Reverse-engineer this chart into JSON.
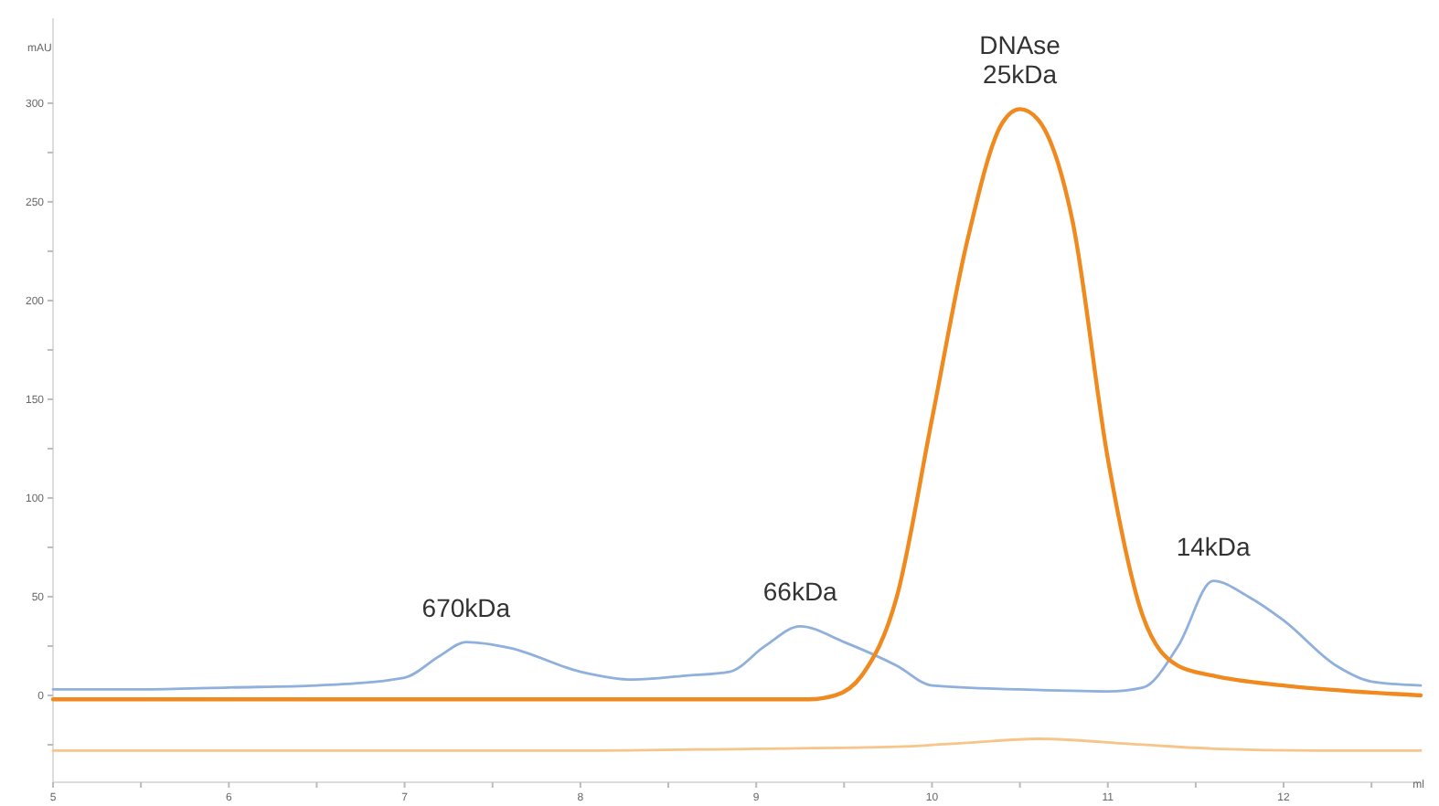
{
  "chart_data": {
    "type": "line",
    "ylabel": "mAU",
    "xlabel": "ml",
    "xlim": [
      5,
      12.78
    ],
    "ylim": [
      -44,
      343
    ],
    "xticks": [
      5,
      {
        "value": 5.5,
        "label": null
      },
      6,
      {
        "value": 6.5,
        "label": null
      },
      7,
      {
        "value": 7.5,
        "label": null
      },
      8,
      {
        "value": 8.5,
        "label": null
      },
      9,
      {
        "value": 9.5,
        "label": null
      },
      10,
      {
        "value": 10.5,
        "label": null
      },
      11,
      {
        "value": 11.5,
        "label": null
      },
      12,
      {
        "value": 12.5,
        "label": null
      }
    ],
    "yticks": [
      {
        "value": -25,
        "label": null
      },
      0,
      {
        "value": 25,
        "label": null
      },
      50,
      {
        "value": 75,
        "label": null
      },
      100,
      {
        "value": 125,
        "label": null
      },
      150,
      {
        "value": 175,
        "label": null
      },
      200,
      {
        "value": 225,
        "label": null
      },
      250,
      {
        "value": 275,
        "label": null
      },
      300
    ],
    "grid": false,
    "marker": "none",
    "line_style": "solid",
    "series": [
      {
        "color": "#8fb0dd",
        "x": [
          5,
          5.5,
          6,
          6.5,
          7,
          7.2,
          7.35,
          7.6,
          8,
          8.3,
          8.6,
          8.85,
          9.05,
          9.25,
          9.5,
          9.8,
          10,
          10.5,
          11,
          11.2,
          11.4,
          11.6,
          11.8,
          12,
          12.3,
          12.5,
          12.78
        ],
        "values": [
          3,
          3,
          4,
          5,
          9,
          20,
          27,
          24,
          12,
          8,
          10,
          12,
          25,
          35,
          27,
          15,
          5,
          3,
          2,
          4,
          25,
          58,
          50,
          38,
          15,
          7,
          5
        ]
      },
      {
        "color": "#f08a1e",
        "x": [
          5,
          6,
          7,
          8,
          9,
          9.3,
          9.45,
          9.6,
          9.8,
          10,
          10.2,
          10.4,
          10.5,
          10.6,
          10.8,
          11,
          11.2,
          11.4,
          11.6,
          12,
          12.4,
          12.78
        ],
        "values": [
          -2,
          -2,
          -2,
          -2,
          -2,
          -2,
          0,
          10,
          50,
          140,
          230,
          290,
          297,
          292,
          240,
          120,
          40,
          15,
          10,
          5,
          2,
          0
        ]
      },
      {
        "color": "#f7c48a",
        "x": [
          5,
          6,
          7,
          8,
          9,
          9.8,
          10.2,
          10.6,
          11.2,
          11.6,
          12.2,
          12.78
        ],
        "values": [
          -28,
          -28,
          -28,
          -28,
          -27,
          -26,
          -24,
          -22,
          -25,
          -27,
          -28,
          -28
        ]
      }
    ],
    "annotations": [
      {
        "text": "670kDa",
        "x": 7.35,
        "y": 27
      },
      {
        "text": "66kDa",
        "x": 9.25,
        "y": 35
      },
      {
        "text": "DNAse\n25kDa",
        "x": 10.5,
        "y": 297
      },
      {
        "text": "14kDa",
        "x": 11.6,
        "y": 58
      }
    ]
  }
}
